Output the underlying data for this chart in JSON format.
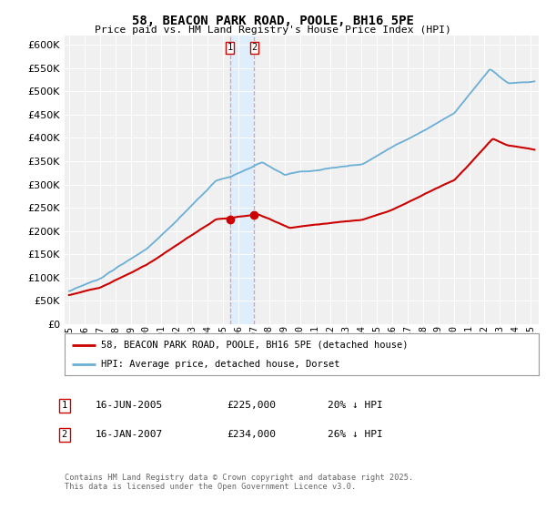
{
  "title": "58, BEACON PARK ROAD, POOLE, BH16 5PE",
  "subtitle": "Price paid vs. HM Land Registry's House Price Index (HPI)",
  "legend_line1": "58, BEACON PARK ROAD, POOLE, BH16 5PE (detached house)",
  "legend_line2": "HPI: Average price, detached house, Dorset",
  "transaction1_date": "16-JUN-2005",
  "transaction1_price": "£225,000",
  "transaction1_hpi": "20% ↓ HPI",
  "transaction2_date": "16-JAN-2007",
  "transaction2_price": "£234,000",
  "transaction2_hpi": "26% ↓ HPI",
  "footnote": "Contains HM Land Registry data © Crown copyright and database right 2025.\nThis data is licensed under the Open Government Licence v3.0.",
  "hpi_color": "#6baed6",
  "price_color": "#cc0000",
  "vline_color": "#ee9999",
  "shade_color": "#ddeeff",
  "background_color": "#ffffff",
  "plot_bg_color": "#f0f0f0",
  "ylim": [
    0,
    620000
  ],
  "yticks": [
    0,
    50000,
    100000,
    150000,
    200000,
    250000,
    300000,
    350000,
    400000,
    450000,
    500000,
    550000,
    600000
  ],
  "xlim_start": 1994.7,
  "xlim_end": 2025.5,
  "t1_x": 2005.46,
  "t1_y": 225000,
  "t2_x": 2007.04,
  "t2_y": 234000
}
